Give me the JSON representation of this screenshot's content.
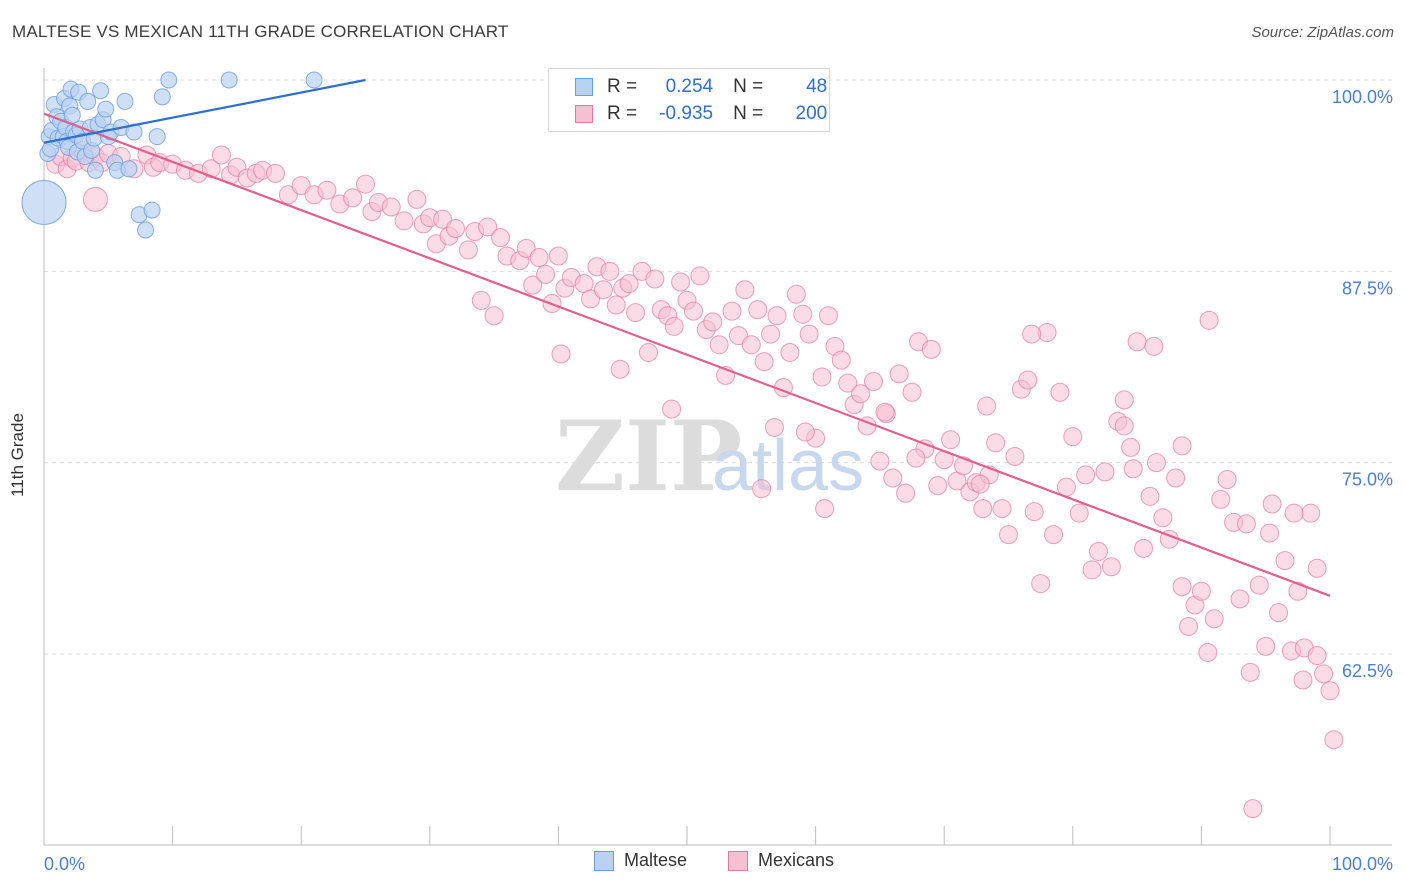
{
  "title": "MALTESE VS MEXICAN 11TH GRADE CORRELATION CHART",
  "source": "Source: ZipAtlas.com",
  "watermark": {
    "zip": "ZIP",
    "atlas": "atlas"
  },
  "legend": {
    "r_label": "R =",
    "n_label": "N =",
    "rows": [
      {
        "r": "0.254",
        "n": "48"
      },
      {
        "r": "-0.935",
        "n": "200"
      }
    ]
  },
  "chart_data": {
    "type": "scatter",
    "title": "MALTESE VS MEXICAN 11TH GRADE CORRELATION CHART",
    "xlabel": "",
    "ylabel": "11th Grade",
    "xlim": [
      0,
      100
    ],
    "ylim": [
      52,
      100.5
    ],
    "x_tick_labels": [
      "0.0%",
      "100.0%"
    ],
    "y_ticks": [
      62.5,
      75.0,
      87.5,
      100.0
    ],
    "y_tick_labels": [
      "62.5%",
      "75.0%",
      "87.5%",
      "100.0%"
    ],
    "grid": true,
    "legend_position": "top-center",
    "series": [
      {
        "name": "Maltese",
        "color": "#6a9de0",
        "fill": "#b9d2f2",
        "trend": {
          "x": [
            0,
            25
          ],
          "y": [
            95.9,
            100
          ]
        },
        "points": [
          [
            0.3,
            95.2
          ],
          [
            0.4,
            96.3
          ],
          [
            0.5,
            95.5
          ],
          [
            0.6,
            96.7
          ],
          [
            0.8,
            98.4
          ],
          [
            1.0,
            97.6
          ],
          [
            1.1,
            96.2
          ],
          [
            1.3,
            97.3
          ],
          [
            1.5,
            96.3
          ],
          [
            1.6,
            98.8
          ],
          [
            1.7,
            96.9
          ],
          [
            1.8,
            96.0
          ],
          [
            1.9,
            95.6
          ],
          [
            2.0,
            98.3
          ],
          [
            2.1,
            99.4
          ],
          [
            2.2,
            97.7
          ],
          [
            2.3,
            96.6
          ],
          [
            2.5,
            96.4
          ],
          [
            2.6,
            95.3
          ],
          [
            2.7,
            99.2
          ],
          [
            2.8,
            96.8
          ],
          [
            3.0,
            96.0
          ],
          [
            3.2,
            95.0
          ],
          [
            3.4,
            98.6
          ],
          [
            3.6,
            96.9
          ],
          [
            3.7,
            95.4
          ],
          [
            3.9,
            96.2
          ],
          [
            4.0,
            94.1
          ],
          [
            4.2,
            97.1
          ],
          [
            4.4,
            99.3
          ],
          [
            4.6,
            97.4
          ],
          [
            4.8,
            98.1
          ],
          [
            5.0,
            96.3
          ],
          [
            5.2,
            96.6
          ],
          [
            5.5,
            94.6
          ],
          [
            5.7,
            94.1
          ],
          [
            6.0,
            96.9
          ],
          [
            6.3,
            98.6
          ],
          [
            6.6,
            94.2
          ],
          [
            7.0,
            96.6
          ],
          [
            7.4,
            91.2
          ],
          [
            7.9,
            90.2
          ],
          [
            8.4,
            91.5
          ],
          [
            8.8,
            96.3
          ],
          [
            9.2,
            98.9
          ],
          [
            9.7,
            100.0
          ],
          [
            14.4,
            100.0
          ],
          [
            21.0,
            100.0
          ]
        ],
        "radii": [
          6,
          6,
          6,
          6,
          6,
          6,
          6,
          6,
          6,
          6,
          6,
          6,
          6,
          6,
          6,
          6,
          6,
          6,
          6,
          6,
          6,
          6,
          6,
          6,
          6,
          6,
          6,
          6,
          6,
          6,
          6,
          6,
          6,
          6,
          6,
          6,
          6,
          6,
          6,
          6,
          6,
          6,
          6,
          6,
          6,
          6,
          6,
          6
        ],
        "big_point": {
          "x": 0.0,
          "y": 92.0
        }
      },
      {
        "name": "Mexicans",
        "color": "#e8779e",
        "fill": "#f7c0d2",
        "trend": {
          "x": [
            0,
            100
          ],
          "y": [
            97.8,
            66.3
          ]
        },
        "points": [
          [
            0.9,
            94.5
          ],
          [
            1.3,
            95.0
          ],
          [
            1.8,
            94.2
          ],
          [
            2.2,
            94.9
          ],
          [
            2.5,
            94.7
          ],
          [
            3.0,
            95.4
          ],
          [
            3.5,
            94.6
          ],
          [
            4.0,
            95.0
          ],
          [
            4.5,
            94.6
          ],
          [
            5.0,
            95.2
          ],
          [
            6.0,
            95.0
          ],
          [
            7.0,
            94.2
          ],
          [
            8.0,
            95.1
          ],
          [
            8.5,
            94.3
          ],
          [
            9.0,
            94.6
          ],
          [
            10.0,
            94.5
          ],
          [
            11.0,
            94.1
          ],
          [
            12.0,
            93.9
          ],
          [
            13.0,
            94.2
          ],
          [
            13.8,
            95.1
          ],
          [
            14.5,
            93.8
          ],
          [
            15.0,
            94.3
          ],
          [
            15.8,
            93.6
          ],
          [
            16.5,
            93.9
          ],
          [
            17.0,
            94.1
          ],
          [
            18.0,
            93.9
          ],
          [
            19.0,
            92.5
          ],
          [
            20.0,
            93.1
          ],
          [
            21.0,
            92.5
          ],
          [
            22.0,
            92.8
          ],
          [
            23.0,
            91.9
          ],
          [
            24.0,
            92.3
          ],
          [
            25.0,
            93.2
          ],
          [
            25.5,
            91.4
          ],
          [
            26.0,
            92.0
          ],
          [
            27.0,
            91.7
          ],
          [
            28.0,
            90.8
          ],
          [
            29.0,
            92.2
          ],
          [
            29.5,
            90.6
          ],
          [
            30.0,
            91.0
          ],
          [
            30.5,
            89.3
          ],
          [
            31.0,
            90.9
          ],
          [
            31.5,
            89.8
          ],
          [
            32.0,
            90.3
          ],
          [
            33.0,
            88.9
          ],
          [
            33.5,
            90.1
          ],
          [
            34.0,
            85.6
          ],
          [
            34.5,
            90.4
          ],
          [
            35.0,
            84.6
          ],
          [
            35.5,
            89.7
          ],
          [
            36.0,
            88.5
          ],
          [
            37.0,
            88.2
          ],
          [
            37.5,
            89.0
          ],
          [
            38.0,
            86.6
          ],
          [
            38.5,
            88.4
          ],
          [
            39.0,
            87.3
          ],
          [
            39.5,
            85.4
          ],
          [
            40.0,
            88.5
          ],
          [
            40.5,
            86.4
          ],
          [
            41.0,
            87.1
          ],
          [
            42.0,
            86.7
          ],
          [
            42.5,
            85.7
          ],
          [
            43.0,
            87.8
          ],
          [
            43.5,
            86.3
          ],
          [
            44.0,
            87.5
          ],
          [
            44.5,
            85.3
          ],
          [
            45.0,
            86.4
          ],
          [
            45.5,
            86.7
          ],
          [
            46.0,
            84.8
          ],
          [
            46.5,
            87.5
          ],
          [
            47.0,
            82.2
          ],
          [
            47.5,
            87.0
          ],
          [
            48.0,
            85.0
          ],
          [
            48.5,
            84.6
          ],
          [
            49.0,
            83.9
          ],
          [
            49.5,
            86.8
          ],
          [
            50.0,
            85.6
          ],
          [
            50.5,
            84.9
          ],
          [
            51.0,
            87.2
          ],
          [
            51.5,
            83.7
          ],
          [
            52.0,
            84.2
          ],
          [
            52.5,
            82.7
          ],
          [
            53.0,
            80.7
          ],
          [
            53.5,
            84.9
          ],
          [
            54.0,
            83.3
          ],
          [
            54.5,
            86.3
          ],
          [
            55.0,
            82.7
          ],
          [
            55.5,
            85.0
          ],
          [
            56.0,
            81.6
          ],
          [
            56.5,
            83.4
          ],
          [
            57.0,
            84.6
          ],
          [
            57.5,
            79.9
          ],
          [
            58.0,
            82.2
          ],
          [
            58.5,
            86.0
          ],
          [
            59.0,
            84.7
          ],
          [
            59.5,
            83.4
          ],
          [
            60.0,
            76.6
          ],
          [
            60.5,
            80.6
          ],
          [
            61.0,
            84.6
          ],
          [
            61.5,
            82.6
          ],
          [
            62.0,
            81.7
          ],
          [
            62.5,
            80.2
          ],
          [
            63.0,
            78.8
          ],
          [
            63.5,
            79.5
          ],
          [
            64.0,
            77.4
          ],
          [
            64.5,
            80.3
          ],
          [
            65.0,
            75.1
          ],
          [
            65.5,
            78.2
          ],
          [
            66.0,
            74.0
          ],
          [
            66.5,
            80.8
          ],
          [
            67.0,
            73.0
          ],
          [
            67.5,
            79.6
          ],
          [
            68.0,
            82.9
          ],
          [
            68.5,
            75.9
          ],
          [
            69.0,
            82.4
          ],
          [
            69.5,
            73.5
          ],
          [
            70.0,
            75.2
          ],
          [
            70.5,
            76.5
          ],
          [
            71.0,
            73.8
          ],
          [
            71.5,
            74.8
          ],
          [
            72.0,
            73.1
          ],
          [
            72.5,
            73.7
          ],
          [
            73.0,
            72.0
          ],
          [
            73.5,
            74.2
          ],
          [
            74.0,
            76.3
          ],
          [
            74.5,
            72.0
          ],
          [
            75.0,
            70.3
          ],
          [
            75.5,
            75.4
          ],
          [
            76.0,
            79.8
          ],
          [
            76.5,
            80.4
          ],
          [
            77.0,
            71.8
          ],
          [
            77.5,
            67.1
          ],
          [
            78.0,
            83.5
          ],
          [
            78.5,
            70.3
          ],
          [
            79.0,
            79.6
          ],
          [
            79.5,
            73.4
          ],
          [
            80.0,
            76.7
          ],
          [
            80.5,
            71.7
          ],
          [
            81.0,
            74.2
          ],
          [
            81.5,
            68.0
          ],
          [
            82.0,
            69.2
          ],
          [
            82.5,
            74.4
          ],
          [
            83.0,
            68.2
          ],
          [
            83.5,
            77.7
          ],
          [
            84.0,
            79.1
          ],
          [
            84.5,
            76.0
          ],
          [
            85.0,
            82.9
          ],
          [
            85.5,
            69.4
          ],
          [
            86.0,
            72.8
          ],
          [
            86.5,
            75.0
          ],
          [
            87.0,
            71.4
          ],
          [
            87.5,
            70.0
          ],
          [
            88.0,
            74.0
          ],
          [
            88.5,
            66.9
          ],
          [
            89.0,
            64.3
          ],
          [
            89.5,
            65.7
          ],
          [
            90.0,
            66.6
          ],
          [
            90.5,
            62.6
          ],
          [
            91.0,
            64.8
          ],
          [
            91.5,
            72.6
          ],
          [
            92.0,
            73.9
          ],
          [
            92.5,
            71.1
          ],
          [
            93.0,
            66.1
          ],
          [
            93.5,
            71.0
          ],
          [
            94.0,
            52.4
          ],
          [
            94.5,
            67.0
          ],
          [
            95.0,
            63.0
          ],
          [
            95.5,
            72.3
          ],
          [
            96.0,
            65.2
          ],
          [
            96.5,
            68.6
          ],
          [
            97.0,
            62.7
          ],
          [
            97.5,
            66.6
          ],
          [
            98.0,
            62.9
          ],
          [
            98.5,
            71.7
          ],
          [
            99.0,
            62.4
          ],
          [
            99.5,
            61.2
          ],
          [
            100.0,
            60.1
          ],
          [
            100.3,
            56.9
          ],
          [
            93.8,
            61.3
          ],
          [
            97.9,
            60.8
          ],
          [
            99.0,
            68.1
          ],
          [
            67.8,
            75.3
          ],
          [
            72.8,
            73.6
          ],
          [
            84.7,
            74.6
          ],
          [
            65.4,
            78.3
          ],
          [
            88.5,
            76.1
          ],
          [
            76.8,
            83.4
          ],
          [
            60.7,
            72.0
          ],
          [
            55.8,
            73.3
          ],
          [
            59.2,
            77.0
          ],
          [
            90.6,
            84.3
          ],
          [
            86.3,
            82.6
          ],
          [
            95.3,
            70.4
          ],
          [
            97.2,
            71.7
          ],
          [
            84.0,
            77.4
          ],
          [
            40.2,
            82.1
          ],
          [
            44.8,
            81.1
          ],
          [
            73.3,
            78.7
          ],
          [
            56.8,
            77.3
          ],
          [
            48.8,
            78.5
          ]
        ],
        "big_point": {
          "x": 4.0,
          "y": 92.2
        }
      }
    ]
  },
  "bottom_legend": [
    {
      "label": "Maltese"
    },
    {
      "label": "Mexicans"
    }
  ],
  "colors": {
    "blue_line": "#2f6fcf",
    "pink_line": "#e2608e",
    "tick_label_blue": "#4b7fd1",
    "grid": "#dcdcdc"
  }
}
